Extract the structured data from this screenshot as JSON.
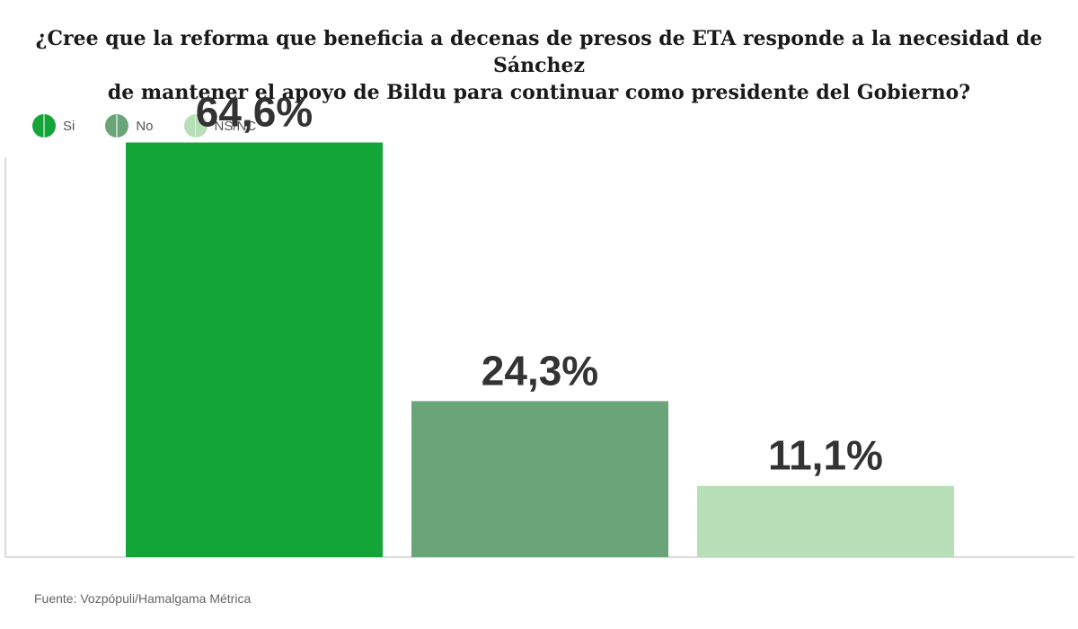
{
  "title": {
    "line1": "¿Cree que la reforma que beneficia a decenas de presos de ETA responde a la necesidad de Sánchez",
    "line2": "de mantener el apoyo de Bildu para continuar como presidente del Gobierno?"
  },
  "legend": [
    {
      "label": "Si",
      "color": "#13a538"
    },
    {
      "label": "No",
      "color": "#6aa479"
    },
    {
      "label": "NS/NC",
      "color": "#b7dfb8"
    }
  ],
  "source": "Fuente: Vozpópuli/Hamalgama Métrica",
  "chart_data": {
    "type": "bar",
    "categories": [
      "Si",
      "No",
      "NS/NC"
    ],
    "values": [
      64.6,
      24.3,
      11.1
    ],
    "labels": [
      "64,6%",
      "24,3%",
      "11,1%"
    ],
    "colors": [
      "#13a538",
      "#6aa479",
      "#b7dfb8"
    ],
    "ylim": [
      0,
      70
    ],
    "grid": false,
    "legend_position": "top-left"
  }
}
